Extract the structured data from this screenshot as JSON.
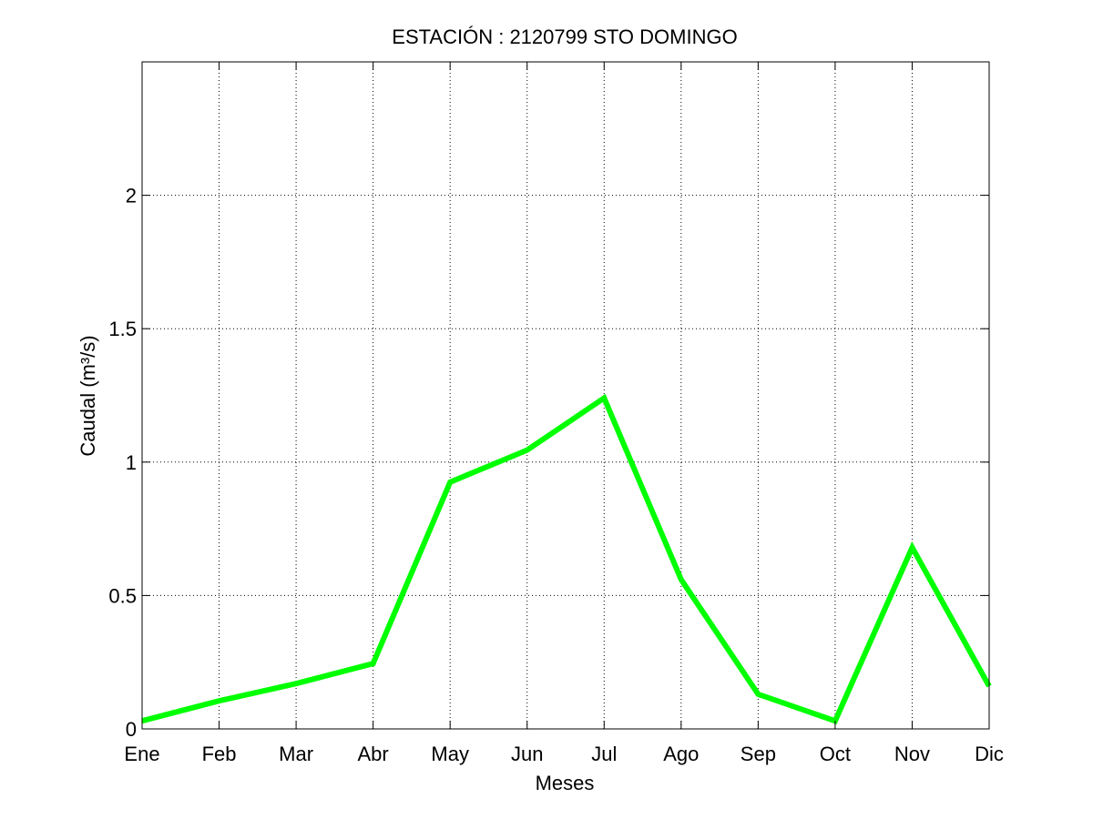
{
  "chart_data": {
    "type": "line",
    "title": "ESTACIÓN :  2120799  STO DOMINGO",
    "xlabel": "Meses",
    "ylabel": "Caudal (m³/s)",
    "categories": [
      "Ene",
      "Feb",
      "Mar",
      "Abr",
      "May",
      "Jun",
      "Jul",
      "Ago",
      "Sep",
      "Oct",
      "Nov",
      "Dic"
    ],
    "yticks": [
      {
        "value": 0,
        "label": "0"
      },
      {
        "value": 0.5,
        "label": "0.5"
      },
      {
        "value": 1,
        "label": "1"
      },
      {
        "value": 1.5,
        "label": "1.5"
      },
      {
        "value": 2,
        "label": "2"
      }
    ],
    "ylim": [
      0,
      2.5
    ],
    "grid": true,
    "series": [
      {
        "values": [
          0.03,
          0.105,
          0.17,
          0.245,
          0.925,
          1.045,
          1.24,
          0.56,
          0.13,
          0.03,
          0.68,
          0.16
        ],
        "color": "#00ff00"
      }
    ]
  }
}
